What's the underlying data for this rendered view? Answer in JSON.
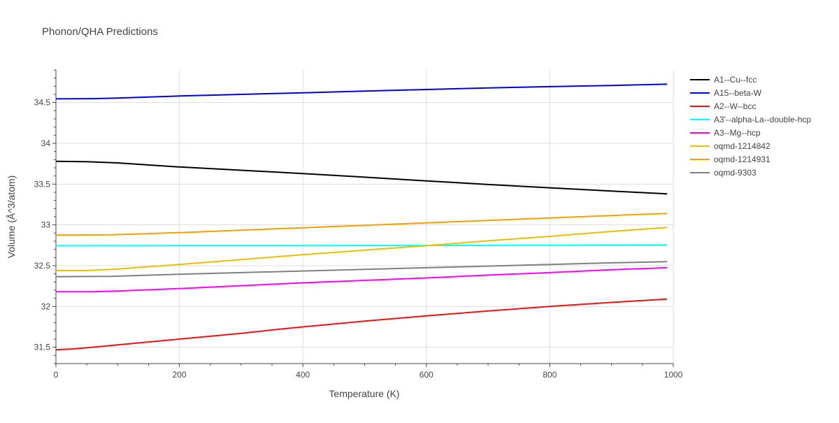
{
  "chart_data": {
    "type": "line",
    "title": "Phonon/QHA Predictions",
    "xlabel": "Temperature (K)",
    "ylabel": "Volume (Å^3/atom)",
    "xlim": [
      0,
      1000
    ],
    "ylim": [
      31.3,
      34.9
    ],
    "xticks": [
      0,
      200,
      400,
      600,
      800,
      1000
    ],
    "xtick_labels": [
      "0",
      "200",
      "400",
      "600",
      "800",
      "1000"
    ],
    "yticks": [
      31.5,
      32,
      32.5,
      33,
      33.5,
      34,
      34.5
    ],
    "ytick_labels": [
      "31.5",
      "32",
      "32.5",
      "33",
      "33.5",
      "34",
      "34.5"
    ],
    "grid": true,
    "legend_position": "right",
    "series": [
      {
        "name": "A1--Cu--fcc",
        "color": "#000000",
        "x": [
          0,
          50,
          100,
          200,
          300,
          400,
          500,
          600,
          700,
          800,
          900,
          990
        ],
        "y": [
          33.78,
          33.775,
          33.76,
          33.71,
          33.67,
          33.63,
          33.585,
          33.54,
          33.495,
          33.455,
          33.415,
          33.38
        ]
      },
      {
        "name": "A15--beta-W",
        "color": "#0000dd",
        "x": [
          0,
          60,
          100,
          200,
          300,
          400,
          500,
          600,
          700,
          800,
          900,
          990
        ],
        "y": [
          34.545,
          34.548,
          34.555,
          34.58,
          34.6,
          34.62,
          34.64,
          34.66,
          34.68,
          34.695,
          34.71,
          34.725
        ]
      },
      {
        "name": "A2--W--bcc",
        "color": "#ee1111",
        "x": [
          0,
          30,
          100,
          200,
          300,
          360,
          400,
          500,
          600,
          700,
          800,
          900,
          990
        ],
        "y": [
          31.47,
          31.48,
          31.53,
          31.6,
          31.67,
          31.72,
          31.75,
          31.82,
          31.885,
          31.945,
          32.0,
          32.05,
          32.09
        ]
      },
      {
        "name": "A3'--alpha-La--double-hcp",
        "color": "#00ffff",
        "x": [
          0,
          200,
          400,
          600,
          800,
          990
        ],
        "y": [
          32.745,
          32.746,
          32.747,
          32.748,
          32.751,
          32.755
        ]
      },
      {
        "name": "A3--Mg--hcp",
        "color": "#ff00ff",
        "x": [
          0,
          60,
          100,
          200,
          300,
          400,
          500,
          600,
          700,
          800,
          900,
          990
        ],
        "y": [
          32.18,
          32.18,
          32.19,
          32.22,
          32.255,
          32.29,
          32.32,
          32.35,
          32.385,
          32.415,
          32.45,
          32.475
        ]
      },
      {
        "name": "oqmd-1214842",
        "color": "#e8c000",
        "x": [
          0,
          50,
          100,
          200,
          300,
          400,
          500,
          600,
          700,
          800,
          900,
          990
        ],
        "y": [
          32.44,
          32.44,
          32.46,
          32.515,
          32.575,
          32.635,
          32.69,
          32.745,
          32.805,
          32.86,
          32.92,
          32.97
        ]
      },
      {
        "name": "oqmd-1214931",
        "color": "#f5a000",
        "x": [
          0,
          90,
          200,
          300,
          400,
          500,
          600,
          700,
          800,
          900,
          990
        ],
        "y": [
          32.875,
          32.88,
          32.905,
          32.935,
          32.965,
          32.995,
          33.025,
          33.055,
          33.085,
          33.115,
          33.14
        ]
      },
      {
        "name": "oqmd-9303",
        "color": "#808080",
        "x": [
          0,
          90,
          200,
          300,
          400,
          500,
          600,
          700,
          800,
          900,
          990
        ],
        "y": [
          32.365,
          32.37,
          32.395,
          32.415,
          32.435,
          32.455,
          32.475,
          32.495,
          32.515,
          32.535,
          32.55
        ]
      }
    ]
  }
}
